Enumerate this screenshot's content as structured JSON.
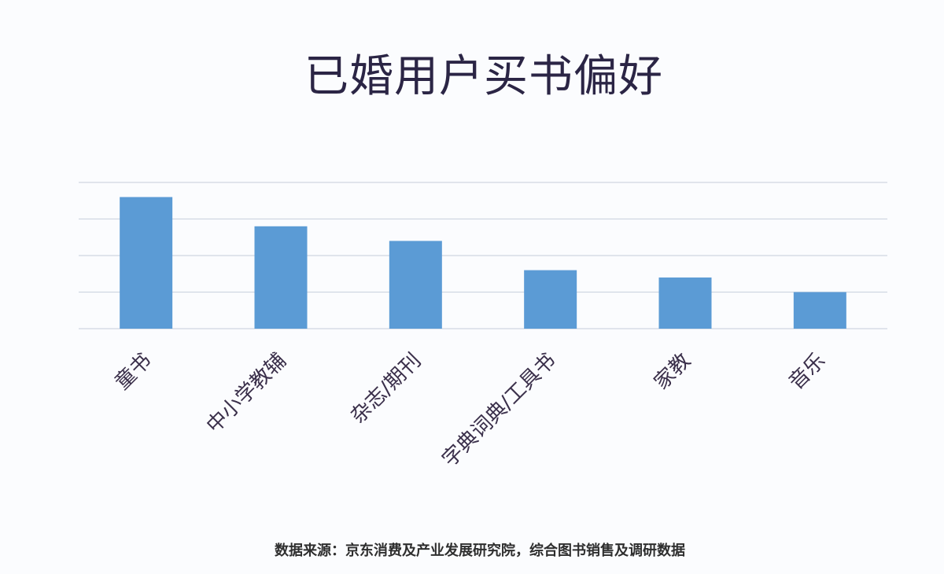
{
  "chart_data": {
    "type": "bar",
    "title": "已婚用户买书偏好",
    "categories": [
      "童书",
      "中小学教辅",
      "杂志/期刊",
      "字典词典/工具书",
      "家教",
      "音乐"
    ],
    "values": [
      3.6,
      2.8,
      2.4,
      1.6,
      1.4,
      1.0
    ],
    "ylim": [
      0,
      4
    ],
    "grid": true,
    "bar_color": "#5b9bd5",
    "grid_color": "#cfd6e2"
  },
  "footer": {
    "source": "数据来源：京东消费及产业发展研究院，综合图书销售及调研数据"
  }
}
